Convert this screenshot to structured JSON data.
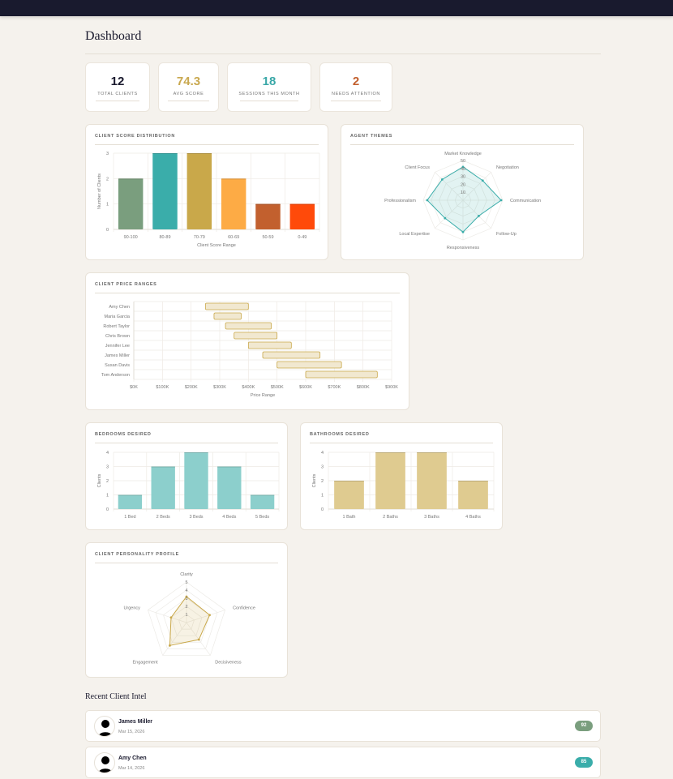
{
  "header": {
    "title": "Dashboard"
  },
  "stats": [
    {
      "value": "12",
      "label": "Total Clients",
      "color": "#1a1a2e"
    },
    {
      "value": "74.3",
      "label": "Avg Score",
      "color": "#c9a84f"
    },
    {
      "value": "18",
      "label": "Sessions This Month",
      "color": "#3aa8a8"
    },
    {
      "value": "2",
      "label": "Needs Attention",
      "color": "#c2602e"
    }
  ],
  "cards": {
    "score_distribution": {
      "title": "Client Score Distribution"
    },
    "agent_themes": {
      "title": "Agent Themes"
    },
    "price_ranges": {
      "title": "Client Price Ranges"
    },
    "bedrooms": {
      "title": "Bedrooms Desired"
    },
    "bathrooms": {
      "title": "Bathrooms Desired"
    },
    "personality": {
      "title": "Client Personality Profile"
    }
  },
  "chart_data": [
    {
      "id": "score_distribution",
      "type": "bar",
      "title": "Client Score Distribution",
      "categories": [
        "90-100",
        "80-89",
        "70-79",
        "60-69",
        "50-59",
        "0-49"
      ],
      "values": [
        2,
        3,
        3,
        2,
        1,
        1
      ],
      "colors": [
        "#7a9e7e",
        "#3aadaa",
        "#c9a84a",
        "#fdab45",
        "#c2602e",
        "#ff4a0a"
      ],
      "xlabel": "Client Score Range",
      "ylabel": "Number of Clients",
      "ylim": [
        0,
        3
      ],
      "yticks": [
        "0",
        "1",
        "2",
        "3"
      ],
      "grid": true
    },
    {
      "id": "agent_themes",
      "type": "radar",
      "title": "Agent Themes",
      "categories": [
        "Market Knowledge",
        "Negotiation",
        "Communication",
        "Follow-Up",
        "Responsiveness",
        "Local Expertise",
        "Professionalism",
        "Client Focus"
      ],
      "values": [
        42,
        35,
        48,
        28,
        40,
        32,
        45,
        37
      ],
      "rticks": [
        "10",
        "20",
        "30",
        "40",
        "50"
      ],
      "rmax": 50,
      "color": "#3aadaa"
    },
    {
      "id": "price_ranges",
      "type": "bar",
      "orientation": "horizontal-range",
      "title": "Client Price Ranges",
      "categories": [
        "Amy Chen",
        "Maria Garcia",
        "Robert Taylor",
        "Chris Brown",
        "Jennifer Lee",
        "James Miller",
        "Susan Davis",
        "Tom Anderson"
      ],
      "ranges": [
        [
          250,
          400
        ],
        [
          280,
          375
        ],
        [
          320,
          480
        ],
        [
          350,
          500
        ],
        [
          400,
          550
        ],
        [
          450,
          650
        ],
        [
          500,
          725
        ],
        [
          600,
          850
        ]
      ],
      "unit": "$K",
      "xlabel": "Price Range",
      "xticks": [
        "$0K",
        "$100K",
        "$200K",
        "$300K",
        "$400K",
        "$500K",
        "$600K",
        "$700K",
        "$800K",
        "$900K"
      ],
      "xlim": [
        0,
        900
      ],
      "grid": true
    },
    {
      "id": "bedrooms",
      "type": "bar",
      "title": "Bedrooms Desired",
      "categories": [
        "1 Bed",
        "2 Beds",
        "3 Beds",
        "4 Beds",
        "5 Beds"
      ],
      "values": [
        1,
        3,
        4,
        3,
        1
      ],
      "ylabel": "Clients",
      "ylim": [
        0,
        4
      ],
      "yticks": [
        "0",
        "1",
        "2",
        "3",
        "4"
      ],
      "color": "#8ccfcc",
      "grid": true
    },
    {
      "id": "bathrooms",
      "type": "bar",
      "title": "Bathrooms Desired",
      "categories": [
        "1 Bath",
        "2 Baths",
        "3 Baths",
        "4 Baths"
      ],
      "values": [
        2,
        4,
        4,
        2
      ],
      "ylabel": "Clients",
      "ylim": [
        0,
        4
      ],
      "yticks": [
        "0",
        "1",
        "2",
        "3",
        "4"
      ],
      "color": "#dfcb90",
      "grid": true
    },
    {
      "id": "personality",
      "type": "radar",
      "title": "Client Personality Profile",
      "categories": [
        "Clarity",
        "Confidence",
        "Decisiveness",
        "Engagement",
        "Urgency"
      ],
      "values": [
        3.2,
        3,
        2.6,
        3.5,
        2
      ],
      "rticks": [
        "1",
        "2",
        "3",
        "4",
        "5"
      ],
      "rmax": 5,
      "color": "#c9a84a"
    }
  ],
  "recent": {
    "title": "Recent Client Intel",
    "items": [
      {
        "name": "James Miller",
        "date": "Mar 15, 2026",
        "score": "92",
        "color": "#7a9e7e"
      },
      {
        "name": "Amy Chen",
        "date": "Mar 14, 2026",
        "score": "85",
        "color": "#3aadaa"
      }
    ]
  }
}
